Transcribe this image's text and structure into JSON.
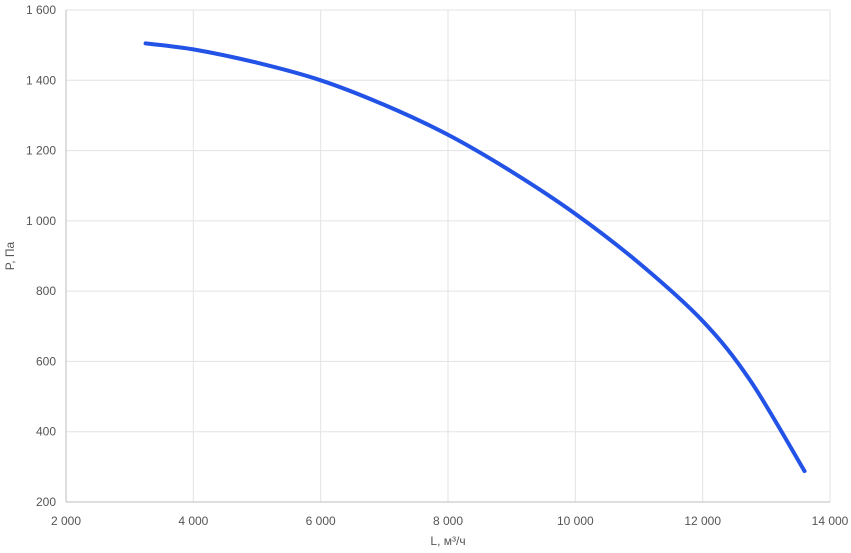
{
  "chart_data": {
    "type": "line",
    "title": "",
    "xlabel": "L, м³/ч",
    "ylabel": "P, Па",
    "xlim": [
      2000,
      14000
    ],
    "ylim": [
      200,
      1600
    ],
    "x_ticks": [
      {
        "value": 2000,
        "label": "2 000"
      },
      {
        "value": 4000,
        "label": "4 000"
      },
      {
        "value": 6000,
        "label": "6 000"
      },
      {
        "value": 8000,
        "label": "8 000"
      },
      {
        "value": 10000,
        "label": "10 000"
      },
      {
        "value": 12000,
        "label": "12 000"
      },
      {
        "value": 14000,
        "label": "14 000"
      }
    ],
    "y_ticks": [
      {
        "value": 200,
        "label": "200"
      },
      {
        "value": 400,
        "label": "400"
      },
      {
        "value": 600,
        "label": "600"
      },
      {
        "value": 800,
        "label": "800"
      },
      {
        "value": 1000,
        "label": "1 000"
      },
      {
        "value": 1200,
        "label": "1 200"
      },
      {
        "value": 1400,
        "label": "1 400"
      },
      {
        "value": 1600,
        "label": "1 600"
      }
    ],
    "grid": true,
    "legend": "none",
    "series": [
      {
        "color": "#2352e6",
        "points": [
          [
            3250,
            1505
          ],
          [
            4000,
            1488
          ],
          [
            5000,
            1450
          ],
          [
            6000,
            1400
          ],
          [
            7000,
            1330
          ],
          [
            8000,
            1245
          ],
          [
            9000,
            1140
          ],
          [
            10000,
            1020
          ],
          [
            11000,
            880
          ],
          [
            12000,
            715
          ],
          [
            12750,
            545
          ],
          [
            13600,
            288
          ]
        ]
      }
    ]
  }
}
